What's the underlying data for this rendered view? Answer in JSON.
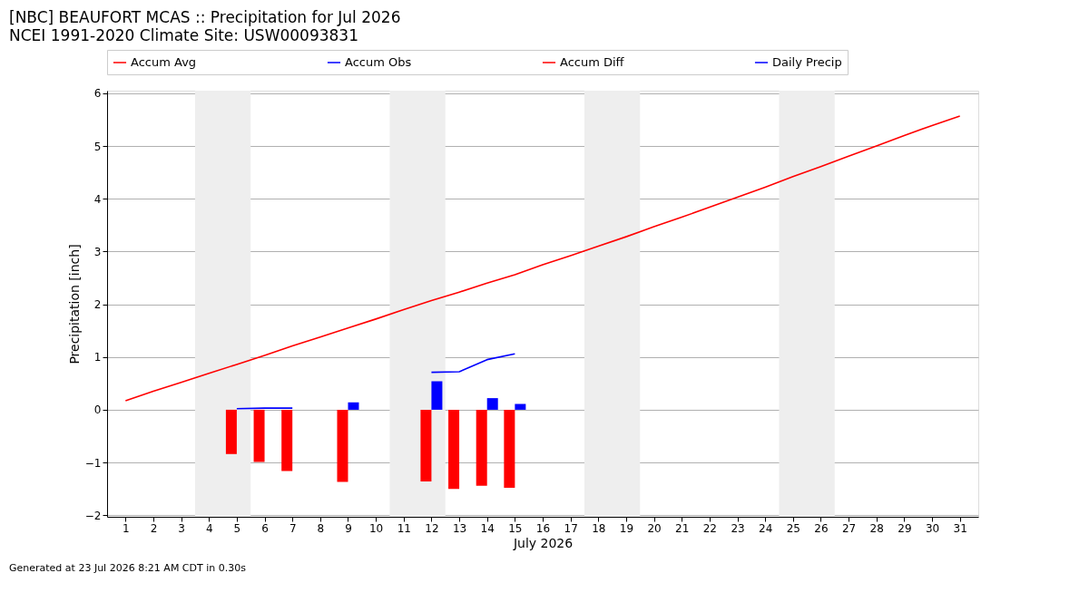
{
  "chart_data": {
    "type": "line",
    "title": "[NBC] BEAUFORT MCAS :: Precipitation for Jul 2026",
    "subtitle": "NCEI 1991-2020 Climate Site: USW00093831",
    "xlabel": "July 2026",
    "ylabel": "Precipitation [inch]",
    "x": [
      1,
      2,
      3,
      4,
      5,
      6,
      7,
      8,
      9,
      10,
      11,
      12,
      13,
      14,
      15,
      16,
      17,
      18,
      19,
      20,
      21,
      22,
      23,
      24,
      25,
      26,
      27,
      28,
      29,
      30,
      31
    ],
    "series": [
      {
        "name": "Accum Avg",
        "color": "#ff0000",
        "values": [
          0.17,
          0.35,
          0.52,
          0.69,
          0.86,
          1.03,
          1.21,
          1.38,
          1.55,
          1.72,
          1.9,
          2.07,
          2.23,
          2.4,
          2.56,
          2.75,
          2.92,
          3.1,
          3.28,
          3.47,
          3.65,
          3.84,
          4.03,
          4.22,
          4.42,
          4.61,
          4.81,
          5.0,
          5.2,
          5.39,
          5.57
        ]
      },
      {
        "name": "Accum Obs",
        "color": "#0000ff",
        "values": [
          null,
          null,
          null,
          null,
          0.02,
          0.03,
          0.03,
          null,
          null,
          null,
          null,
          0.71,
          0.72,
          0.95,
          1.06,
          null,
          null,
          null,
          null,
          null,
          null,
          null,
          null,
          null,
          null,
          null,
          null,
          null,
          null,
          null,
          null
        ]
      },
      {
        "name": "Accum Diff",
        "type": "bar",
        "color": "#ff0000",
        "values": [
          null,
          null,
          null,
          null,
          -0.84,
          -0.99,
          -1.16,
          null,
          -1.37,
          null,
          null,
          -1.36,
          -1.5,
          -1.44,
          -1.48,
          null,
          null,
          null,
          null,
          null,
          null,
          null,
          null,
          null,
          null,
          null,
          null,
          null,
          null,
          null,
          null
        ]
      },
      {
        "name": "Daily Precip",
        "type": "bar",
        "color": "#0000ff",
        "values": [
          null,
          null,
          null,
          null,
          null,
          null,
          null,
          null,
          0.14,
          null,
          null,
          0.54,
          null,
          0.22,
          0.11,
          null,
          null,
          null,
          null,
          null,
          null,
          null,
          null,
          null,
          null,
          null,
          null,
          null,
          null,
          null,
          null
        ]
      }
    ],
    "xlim": [
      0.5,
      31.5
    ],
    "xticks": [
      1,
      2,
      3,
      4,
      5,
      6,
      7,
      8,
      9,
      10,
      11,
      12,
      13,
      14,
      15,
      16,
      17,
      18,
      19,
      20,
      21,
      22,
      23,
      24,
      25,
      26,
      27,
      28,
      29,
      30,
      31
    ],
    "ylim": [
      -2.03,
      6.05
    ],
    "yticks": [
      {
        "value": -2,
        "label": "−2"
      },
      {
        "value": -1,
        "label": "−1"
      },
      0,
      1,
      2,
      3,
      4,
      5,
      6
    ],
    "bands": [
      {
        "axis": "x",
        "from": 3.5,
        "to": 5.5,
        "color": "#eeeeee"
      },
      {
        "axis": "x",
        "from": 10.5,
        "to": 12.5,
        "color": "#eeeeee"
      },
      {
        "axis": "x",
        "from": 17.5,
        "to": 19.5,
        "color": "#eeeeee"
      },
      {
        "axis": "x",
        "from": 24.5,
        "to": 26.5,
        "color": "#eeeeee"
      }
    ],
    "grid": "y",
    "legend": "top",
    "annotations": [
      "Generated at 23 Jul 2026 8:21 AM CDT in 0.30s"
    ]
  }
}
